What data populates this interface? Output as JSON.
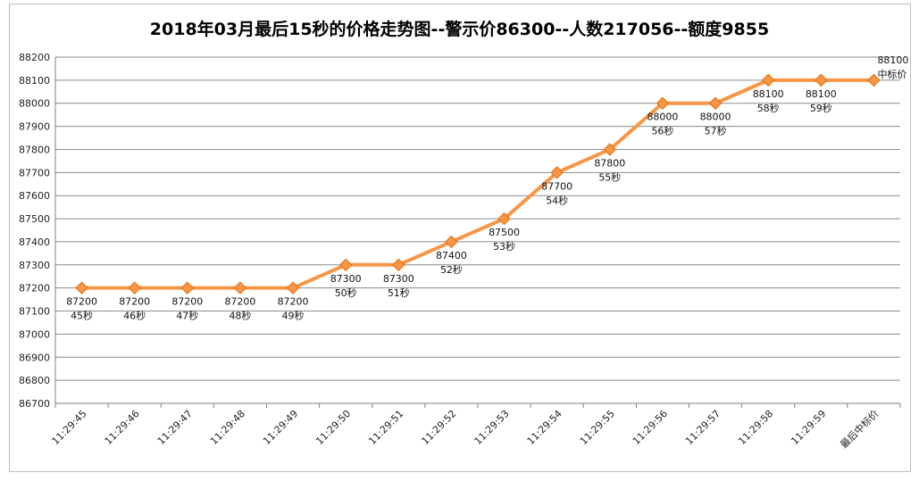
{
  "chart_data": {
    "type": "line",
    "title": "2018年03月最后15秒的价格走势图--警示价86300--人数217056--额度9855",
    "xlabel": "",
    "ylabel": "",
    "ylim": [
      86700,
      88200
    ],
    "yticks": [
      86700,
      86800,
      86900,
      87000,
      87100,
      87200,
      87300,
      87400,
      87500,
      87600,
      87700,
      87800,
      87900,
      88000,
      88100,
      88200
    ],
    "grid": true,
    "legend": "none",
    "categories": [
      "11:29:45",
      "11:29:46",
      "11:29:47",
      "11:29:48",
      "11:29:49",
      "11:29:50",
      "11:29:51",
      "11:29:52",
      "11:29:53",
      "11:29:54",
      "11:29:55",
      "11:29:56",
      "11:29:57",
      "11:29:58",
      "11:29:59",
      "最后中标价"
    ],
    "series": [
      {
        "values": [
          87200,
          87200,
          87200,
          87200,
          87200,
          87300,
          87300,
          87400,
          87500,
          87700,
          87800,
          88000,
          88000,
          88100,
          88100,
          88100
        ],
        "point_labels": [
          [
            "87200",
            "45秒"
          ],
          [
            "87200",
            "46秒"
          ],
          [
            "87200",
            "47秒"
          ],
          [
            "87200",
            "48秒"
          ],
          [
            "87200",
            "49秒"
          ],
          [
            "87300",
            "50秒"
          ],
          [
            "87300",
            "51秒"
          ],
          [
            "87400",
            "52秒"
          ],
          [
            "87500",
            "53秒"
          ],
          [
            "87700",
            "54秒"
          ],
          [
            "87800",
            "55秒"
          ],
          [
            "88000",
            "56秒"
          ],
          [
            "88000",
            "57秒"
          ],
          [
            "88100",
            "58秒"
          ],
          [
            "88100",
            "59秒"
          ],
          [
            "88100",
            "中标价"
          ]
        ]
      }
    ],
    "colors": {
      "line": "#f79646",
      "marker": "#f79646",
      "marker_border": "#e36c09",
      "grid": "#8c8c8c"
    }
  }
}
